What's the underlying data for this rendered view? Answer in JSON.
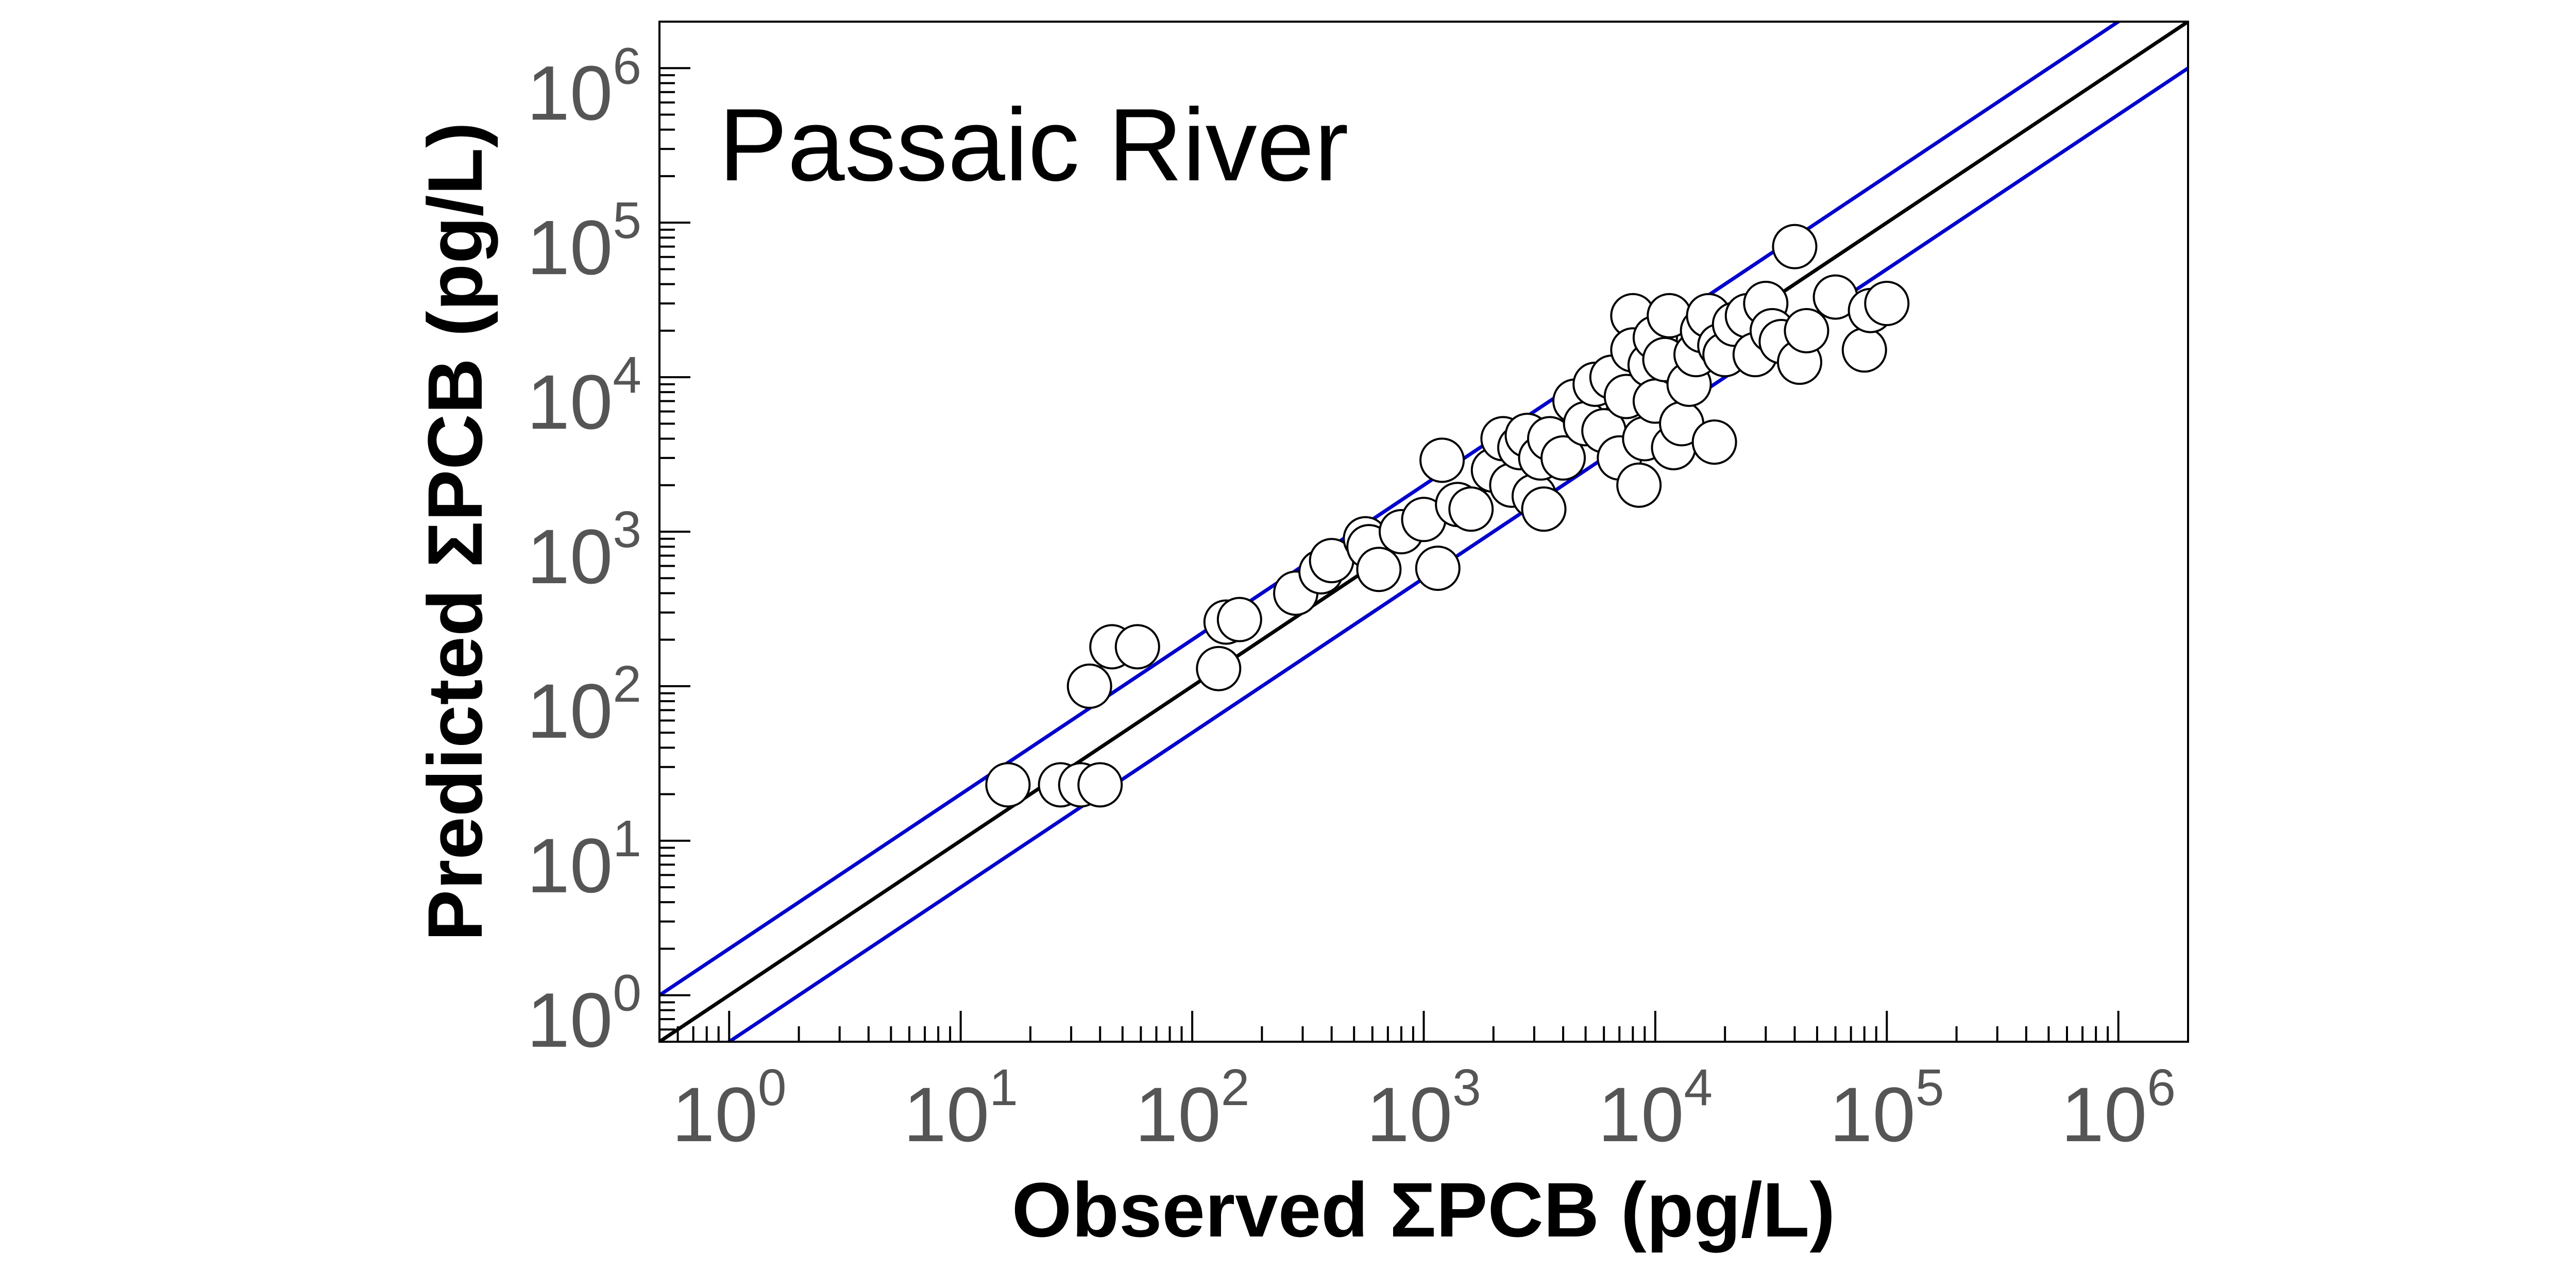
{
  "chart_data": {
    "type": "scatter",
    "title": "",
    "annotation": "Passaic River",
    "xlabel": "Observed ΣPCB (pg/L)",
    "ylabel": "Predicted ΣPCB (pg/L)",
    "x_scale": "log",
    "y_scale": "log",
    "xlim": [
      0.5,
      2000000
    ],
    "ylim": [
      0.5,
      2000000
    ],
    "grid": false,
    "x_ticks": [
      {
        "base": "10",
        "exp": "0",
        "value": 1
      },
      {
        "base": "10",
        "exp": "1",
        "value": 10
      },
      {
        "base": "10",
        "exp": "2",
        "value": 100
      },
      {
        "base": "10",
        "exp": "3",
        "value": 1000
      },
      {
        "base": "10",
        "exp": "4",
        "value": 10000
      },
      {
        "base": "10",
        "exp": "5",
        "value": 100000
      },
      {
        "base": "10",
        "exp": "6",
        "value": 1000000
      }
    ],
    "y_ticks": [
      {
        "base": "10",
        "exp": "0",
        "value": 1
      },
      {
        "base": "10",
        "exp": "1",
        "value": 10
      },
      {
        "base": "10",
        "exp": "2",
        "value": 100
      },
      {
        "base": "10",
        "exp": "3",
        "value": 1000
      },
      {
        "base": "10",
        "exp": "4",
        "value": 10000
      },
      {
        "base": "10",
        "exp": "5",
        "value": 100000
      },
      {
        "base": "10",
        "exp": "6",
        "value": 1000000
      }
    ],
    "reference_lines": [
      {
        "kind": "1:1",
        "factor": 1,
        "color": "#000000"
      },
      {
        "kind": "factor-2-upper",
        "factor": 2,
        "color": "#0000cc"
      },
      {
        "kind": "factor-2-lower",
        "factor": 0.5,
        "color": "#0000cc"
      }
    ],
    "marker_color": "#ffffff",
    "marker_edge_color": "#000000",
    "series": [
      {
        "points": [
          [
            16,
            23
          ],
          [
            27,
            23
          ],
          [
            33,
            23
          ],
          [
            40,
            23
          ],
          [
            36,
            100
          ],
          [
            45,
            180
          ],
          [
            58,
            180
          ],
          [
            130,
            130
          ],
          [
            140,
            260
          ],
          [
            160,
            270
          ],
          [
            280,
            400
          ],
          [
            360,
            550
          ],
          [
            400,
            650
          ],
          [
            560,
            900
          ],
          [
            580,
            800
          ],
          [
            640,
            570
          ],
          [
            800,
            1000
          ],
          [
            1000,
            1200
          ],
          [
            1150,
            580
          ],
          [
            1200,
            2900
          ],
          [
            1400,
            1500
          ],
          [
            1600,
            1400
          ],
          [
            2000,
            2500
          ],
          [
            2200,
            4000
          ],
          [
            2400,
            2000
          ],
          [
            2600,
            3500
          ],
          [
            2800,
            4200
          ],
          [
            3000,
            1700
          ],
          [
            3200,
            3000
          ],
          [
            3300,
            1400
          ],
          [
            3500,
            4000
          ],
          [
            4000,
            3000
          ],
          [
            4500,
            7000
          ],
          [
            5000,
            5000
          ],
          [
            5500,
            9000
          ],
          [
            6000,
            4500
          ],
          [
            6500,
            10000
          ],
          [
            7000,
            3000
          ],
          [
            7500,
            7500
          ],
          [
            8000,
            25000
          ],
          [
            8000,
            15000
          ],
          [
            8500,
            2000
          ],
          [
            9000,
            4000
          ],
          [
            9500,
            12000
          ],
          [
            10000,
            7000
          ],
          [
            10000,
            18000
          ],
          [
            11000,
            13000
          ],
          [
            11500,
            25000
          ],
          [
            12000,
            3500
          ],
          [
            13000,
            5000
          ],
          [
            14000,
            9000
          ],
          [
            15000,
            14000
          ],
          [
            16000,
            20000
          ],
          [
            17000,
            25000
          ],
          [
            18000,
            3800
          ],
          [
            19000,
            16000
          ],
          [
            20000,
            14000
          ],
          [
            22000,
            22000
          ],
          [
            25000,
            25000
          ],
          [
            27000,
            14000
          ],
          [
            30000,
            30000
          ],
          [
            32000,
            20000
          ],
          [
            35000,
            17000
          ],
          [
            40000,
            70000
          ],
          [
            42000,
            12500
          ],
          [
            45000,
            20000
          ],
          [
            60000,
            33000
          ],
          [
            80000,
            15000
          ],
          [
            85000,
            27000
          ],
          [
            100000,
            30000
          ]
        ]
      }
    ]
  }
}
